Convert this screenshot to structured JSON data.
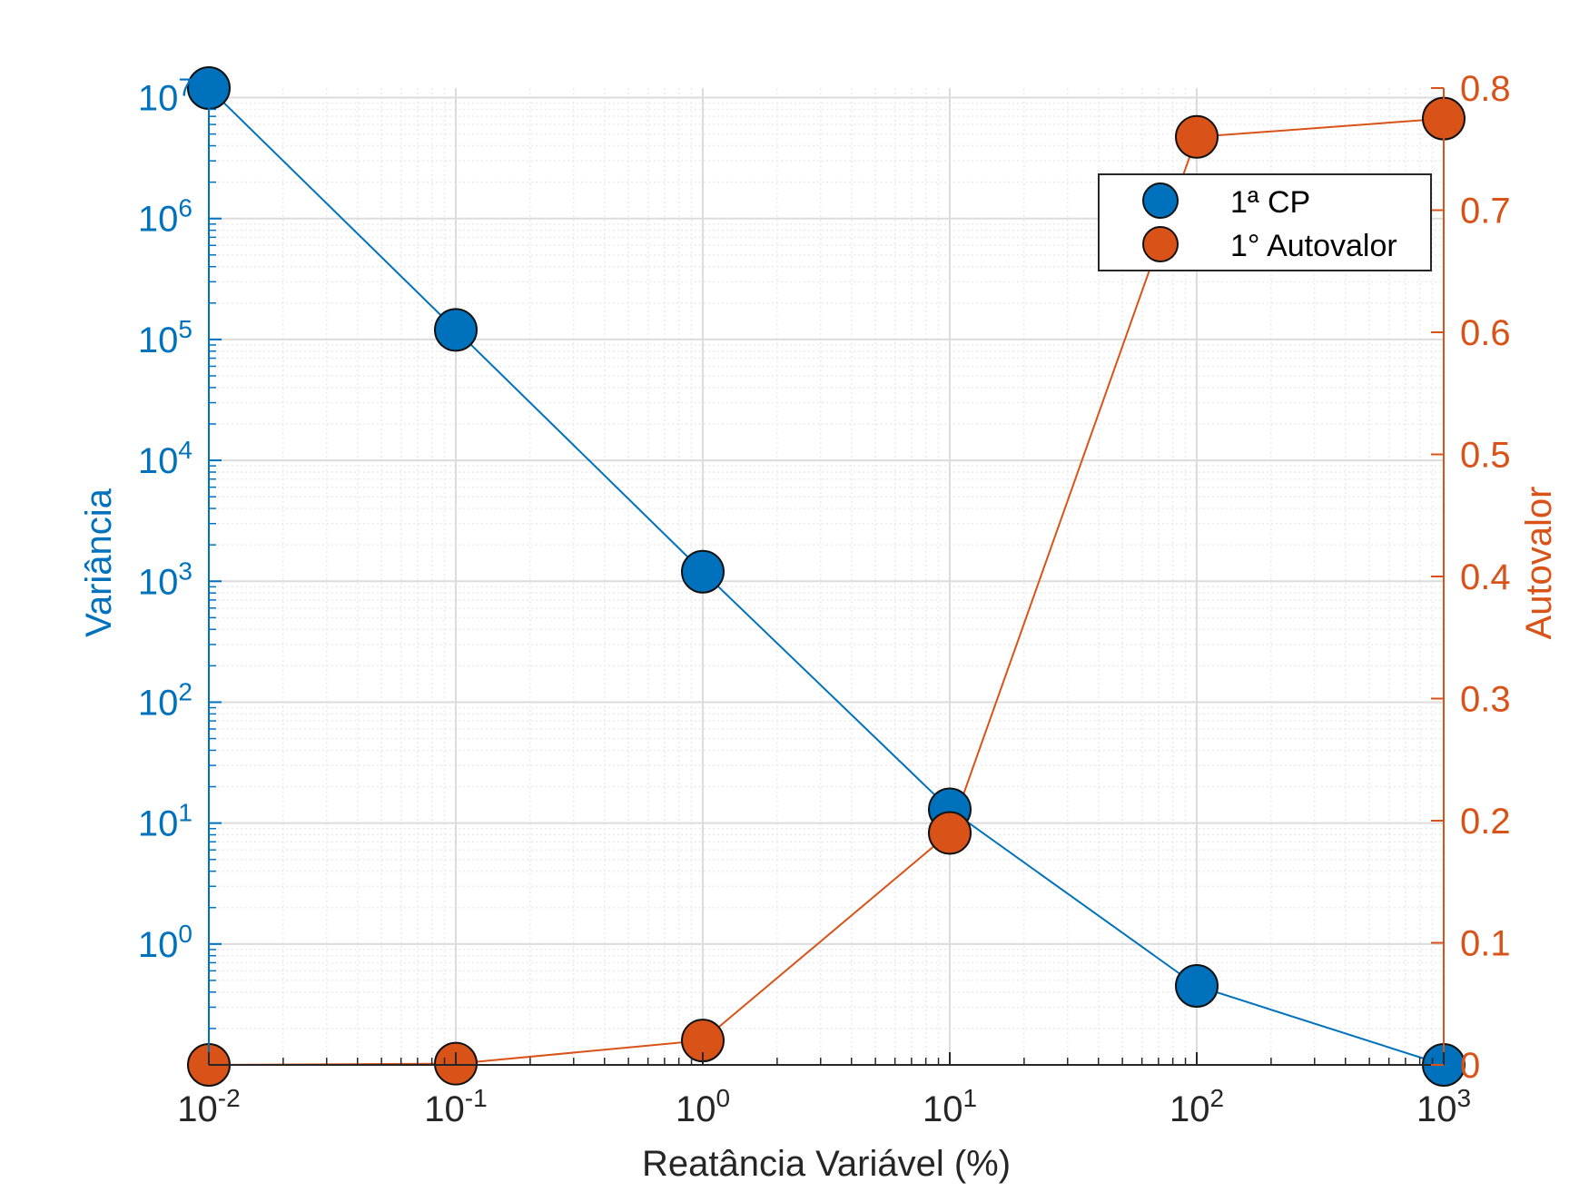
{
  "chart_data": {
    "type": "line",
    "xlabel": "Reatância Variável (%)",
    "xscale": "log",
    "xlim": [
      0.01,
      1000
    ],
    "x_ticks": [
      {
        "value": 0.01,
        "base": "10",
        "exp": "-2"
      },
      {
        "value": 0.1,
        "base": "10",
        "exp": "-1"
      },
      {
        "value": 1,
        "base": "10",
        "exp": "0"
      },
      {
        "value": 10,
        "base": "10",
        "exp": "1"
      },
      {
        "value": 100,
        "base": "10",
        "exp": "2"
      },
      {
        "value": 1000,
        "base": "10",
        "exp": "3"
      }
    ],
    "y_left": {
      "label": "Variância",
      "scale": "log",
      "lim": [
        0.1,
        12000000
      ],
      "ticks": [
        {
          "value": 1,
          "base": "10",
          "exp": "0"
        },
        {
          "value": 10,
          "base": "10",
          "exp": "1"
        },
        {
          "value": 100,
          "base": "10",
          "exp": "2"
        },
        {
          "value": 1000,
          "base": "10",
          "exp": "3"
        },
        {
          "value": 10000,
          "base": "10",
          "exp": "4"
        },
        {
          "value": 100000,
          "base": "10",
          "exp": "5"
        },
        {
          "value": 1000000,
          "base": "10",
          "exp": "6"
        },
        {
          "value": 10000000,
          "base": "10",
          "exp": "7"
        }
      ]
    },
    "y_right": {
      "label": "Autovalor",
      "scale": "linear",
      "lim": [
        0,
        0.8
      ],
      "ticks": [
        {
          "value": 0,
          "label": "0"
        },
        {
          "value": 0.1,
          "label": "0.1"
        },
        {
          "value": 0.2,
          "label": "0.2"
        },
        {
          "value": 0.3,
          "label": "0.3"
        },
        {
          "value": 0.4,
          "label": "0.4"
        },
        {
          "value": 0.5,
          "label": "0.5"
        },
        {
          "value": 0.6,
          "label": "0.6"
        },
        {
          "value": 0.7,
          "label": "0.7"
        },
        {
          "value": 0.8,
          "label": "0.8"
        }
      ]
    },
    "grid": true,
    "legend_position": "top-right",
    "series": [
      {
        "name": "1ª CP",
        "axis": "left",
        "color": "#0072BD",
        "x": [
          0.01,
          0.1,
          1,
          10,
          100,
          1000
        ],
        "y": [
          12000000,
          120000,
          1200,
          13,
          0.45,
          0.1
        ]
      },
      {
        "name": "1° Autovalor",
        "axis": "right",
        "color": "#D95319",
        "x": [
          0.01,
          0.1,
          1,
          10,
          100,
          1000
        ],
        "y": [
          0.0,
          0.001,
          0.02,
          0.19,
          0.76,
          0.775
        ]
      }
    ]
  }
}
